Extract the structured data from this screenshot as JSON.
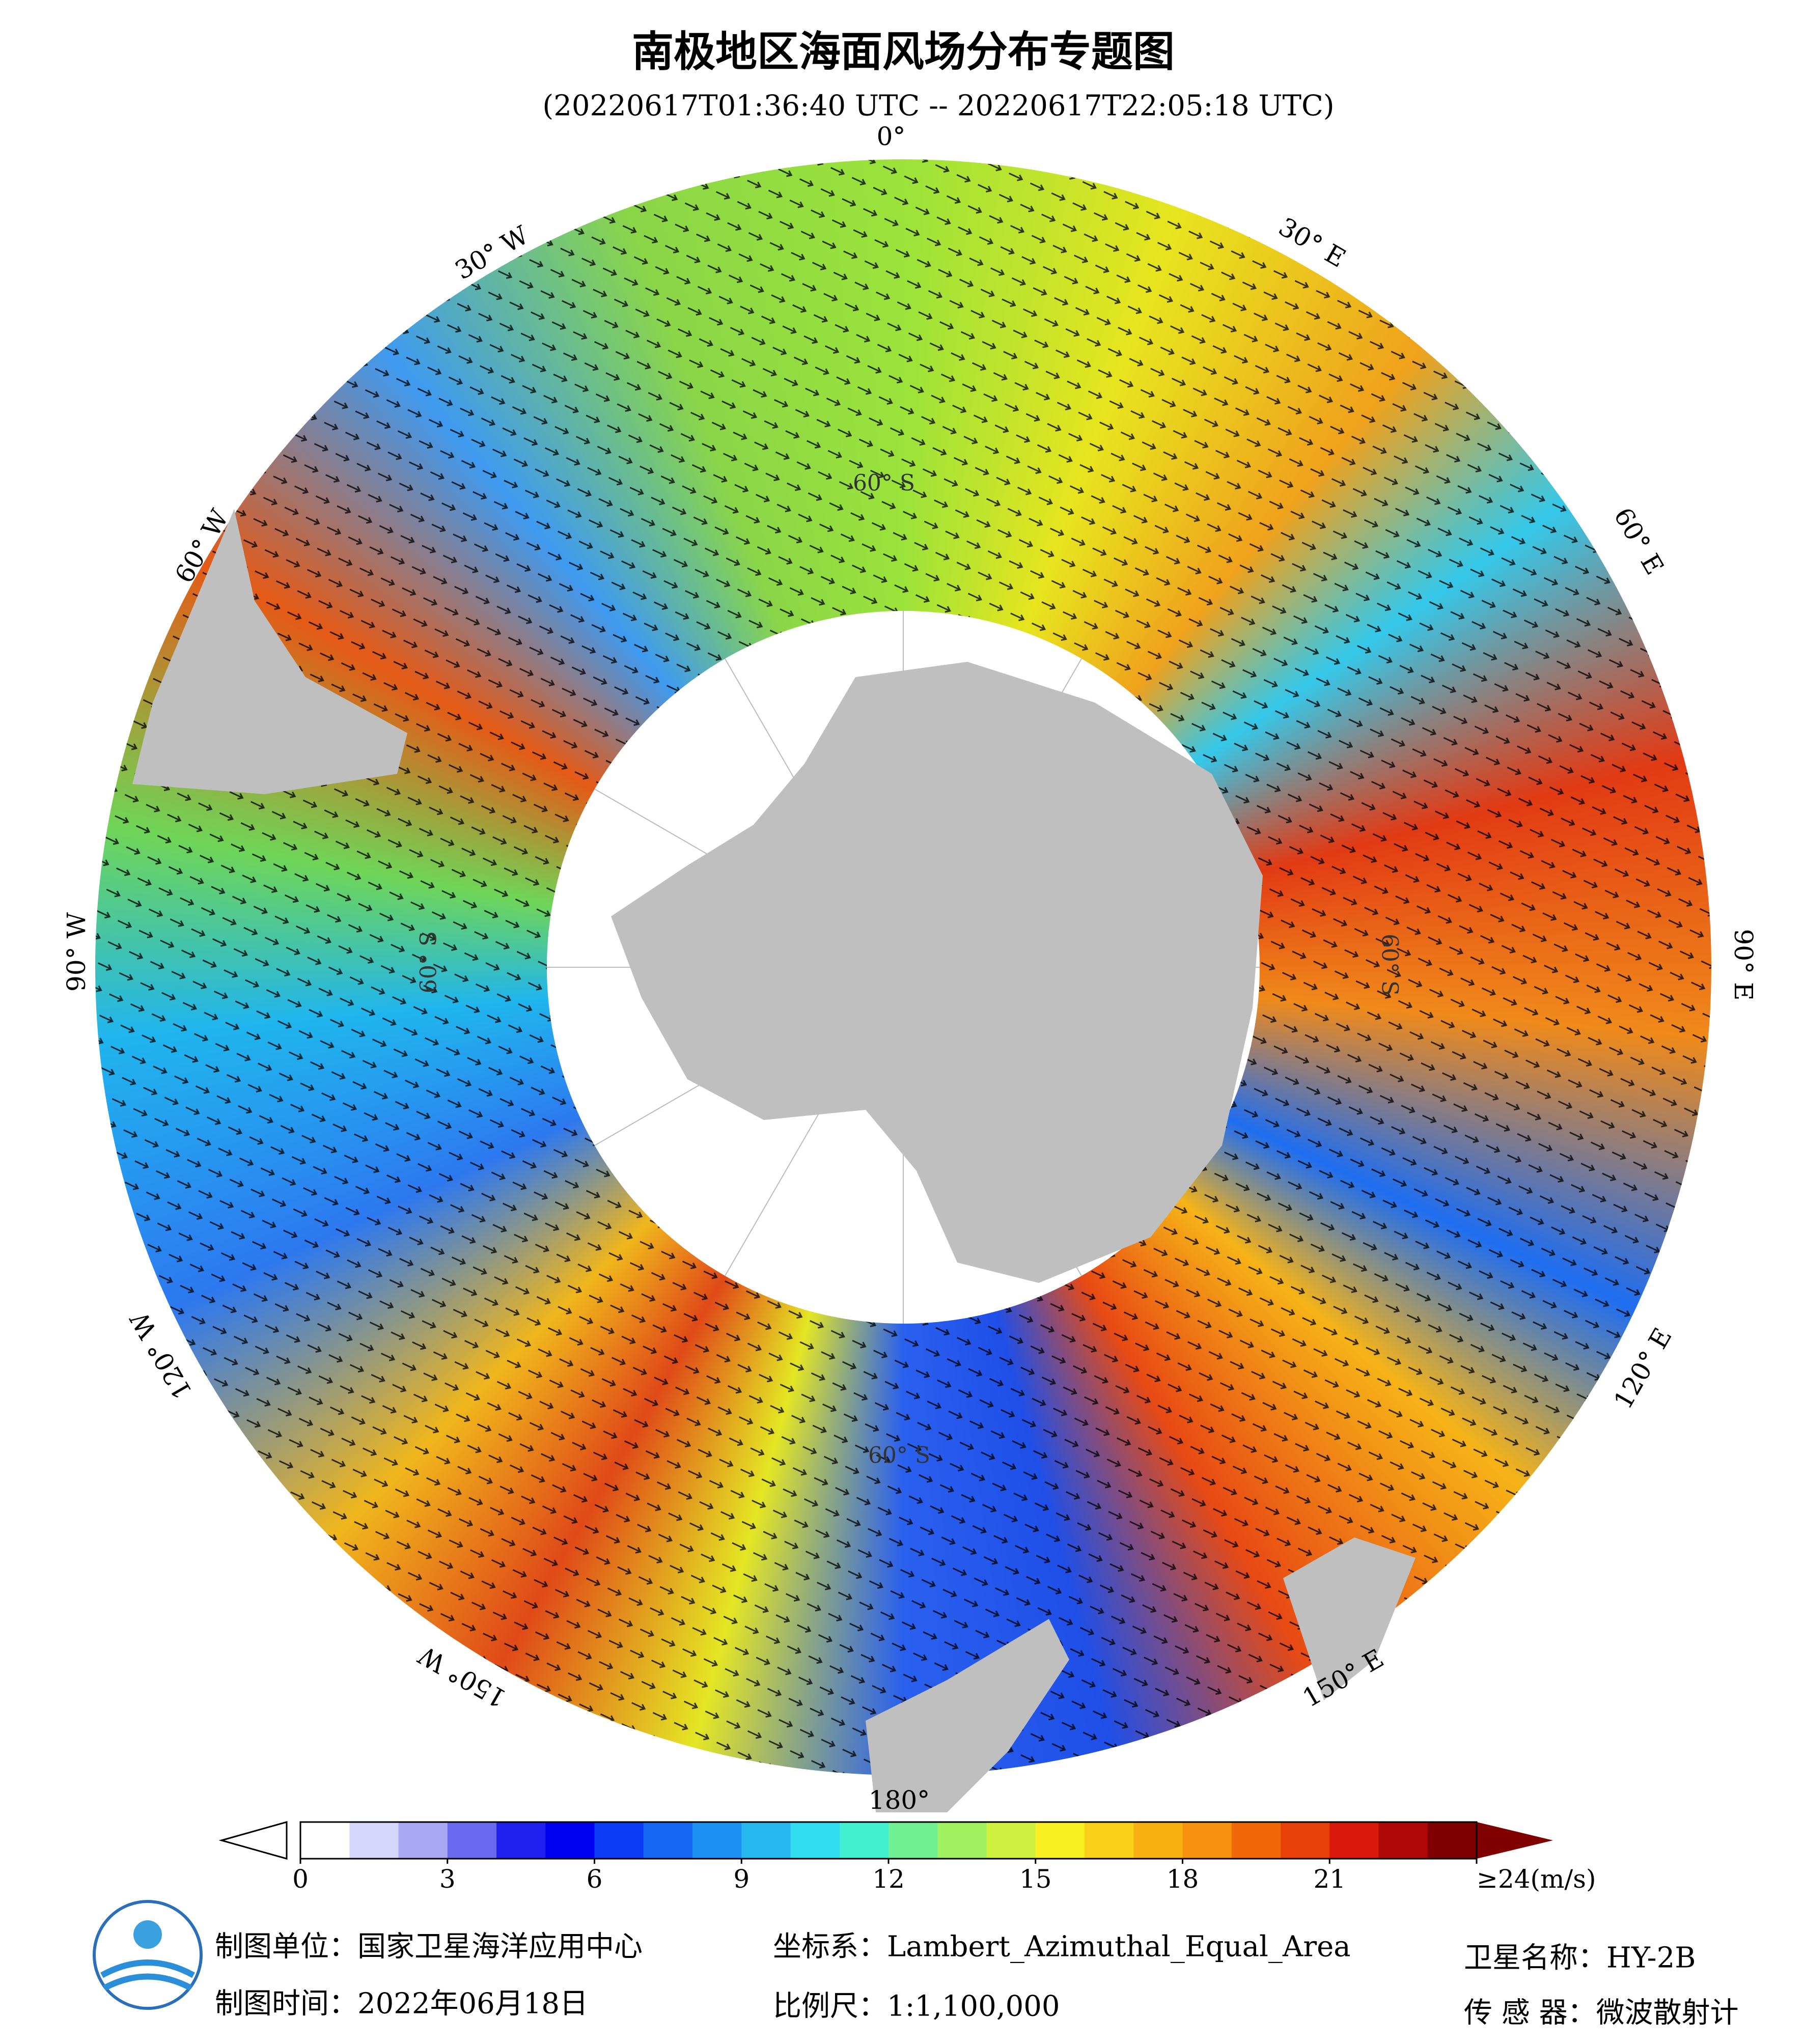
{
  "header": {
    "title": "南极地区海面风场分布专题图",
    "subtitle": "(20220617T01:36:40 UTC -- 20220617T22:05:18 UTC)"
  },
  "map": {
    "longitude_labels": [
      "0°",
      "30° E",
      "60° E",
      "90° E",
      "120° E",
      "150° E",
      "180°",
      "150° W",
      "120° W",
      "90° W",
      "60° W",
      "30° W"
    ],
    "latitude_labels": [
      "60° S",
      "60° S",
      "60° S",
      "60° S"
    ]
  },
  "colorbar": {
    "lim": [
      0,
      24
    ],
    "ticks": [
      0,
      3,
      6,
      9,
      12,
      15,
      18,
      21,
      {
        "value": 24,
        "label": "≥24(m/s)"
      }
    ],
    "colors": [
      "#ffffff",
      "#d6d6fa",
      "#a8a8f5",
      "#6a6af0",
      "#2020f0",
      "#0000f0",
      "#0a3cf5",
      "#1468f5",
      "#1e90f5",
      "#28b8f0",
      "#30dcf0",
      "#40f0d0",
      "#70f090",
      "#a0f060",
      "#d0f040",
      "#f8f020",
      "#f8d018",
      "#f8b010",
      "#f89010",
      "#f06808",
      "#e84008",
      "#d81808",
      "#b00808",
      "#800000"
    ]
  },
  "footer": {
    "unit": "制图单位：国家卫星海洋应用中心",
    "time": "制图时间：2022年06月18日",
    "crs": "坐标系：Lambert_Azimuthal_Equal_Area",
    "scale": "比例尺：1:1,100,000",
    "satellite": "卫星名称：HY-2B",
    "sensor": "传 感 器：微波散射计"
  }
}
